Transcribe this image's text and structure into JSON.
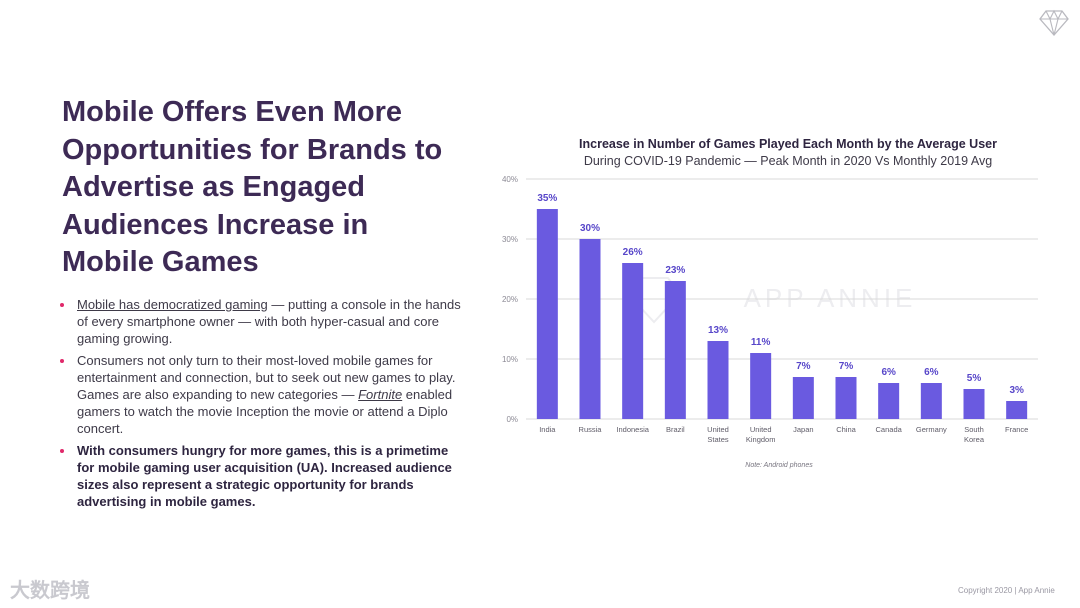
{
  "slide": {
    "headline": "Mobile Offers Even More Opportunities for Brands to Advertise as Engaged Audiences Increase in Mobile Games",
    "bullets": [
      {
        "link_text": "Mobile has democratized gaming",
        "rest": " — putting a console in the hands of every smartphone owner — with both hyper-casual and core gaming growing."
      },
      {
        "pre": "Consumers not only turn to their most-loved mobile games for entertainment and connection, but to seek out new games to play. Games are also expanding to new categories — ",
        "link_text": "Fortnite",
        "post": " enabled gamers to watch the movie Inception the movie or attend a Diplo concert."
      },
      {
        "text": "With consumers hungry for more games, this is a primetime for mobile gaming user acquisition (UA). Increased audience sizes also represent a strategic opportunity for brands advertising in mobile games."
      }
    ],
    "footer_left": "大数跨境",
    "footer_right": "Copyright 2020 | App Annie",
    "icons": {
      "top_right": "diamond-logo-icon"
    }
  },
  "chart_data": {
    "type": "bar",
    "title": "Increase in Number of Games Played Each Month by the Average User",
    "subtitle": "During COVID-19 Pandemic — Peak Month in 2020 Vs Monthly 2019 Avg",
    "categories": [
      [
        "India"
      ],
      [
        "Russia"
      ],
      [
        "Indonesia"
      ],
      [
        "Brazil"
      ],
      [
        "United",
        "States"
      ],
      [
        "United",
        "Kingdom"
      ],
      [
        "Japan"
      ],
      [
        "China"
      ],
      [
        "Canada"
      ],
      [
        "Germany"
      ],
      [
        "South",
        "Korea"
      ],
      [
        "France"
      ]
    ],
    "values": [
      35,
      30,
      26,
      23,
      13,
      11,
      7,
      7,
      6,
      6,
      5,
      3
    ],
    "value_labels": [
      "35%",
      "30%",
      "26%",
      "23%",
      "13%",
      "11%",
      "7%",
      "7%",
      "6%",
      "6%",
      "5%",
      "3%"
    ],
    "y_ticks": [
      0,
      10,
      20,
      30,
      40
    ],
    "y_tick_labels": [
      "0%",
      "10%",
      "20%",
      "30%",
      "40%"
    ],
    "ylim": [
      0,
      40
    ],
    "grid": true,
    "legend": "none",
    "note": "Note: Android phones",
    "watermark": "APP ANNIE",
    "colors": {
      "bar": "#6a5ae0",
      "label": "#5746c9",
      "grid": "#d9d9d9"
    }
  }
}
